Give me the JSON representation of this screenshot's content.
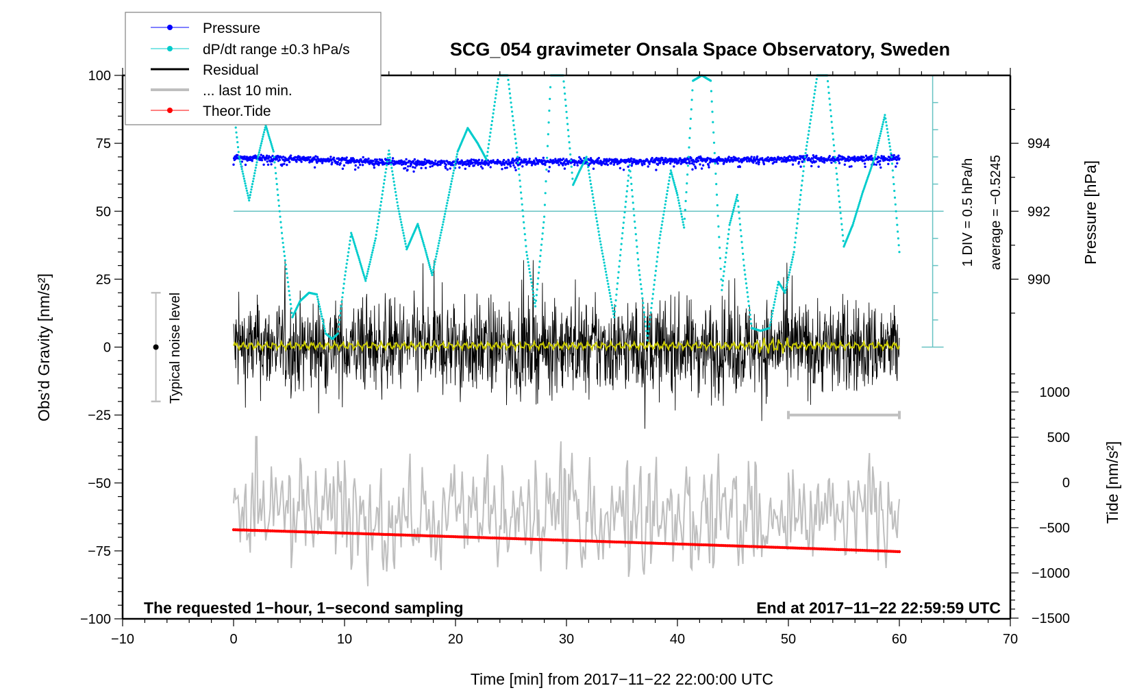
{
  "chart_data": {
    "type": "line",
    "title": "SCG_054 gravimeter Onsala Space Observatory, Sweden",
    "xlabel": "Time [min] from 2017−11−22 22:00:00 UTC",
    "ylabel_left": "Obs’d Gravity [nm/s²]",
    "ylabel_right_pressure": "Pressure [hPa]",
    "ylabel_right_tide": "Tide [nm/s²]",
    "xlim": [
      -10,
      70
    ],
    "ylim": [
      -100,
      100
    ],
    "x_ticks": [
      -10,
      0,
      10,
      20,
      30,
      40,
      50,
      60,
      70
    ],
    "x_tick_labels": [
      "−10",
      "0",
      "10",
      "20",
      "30",
      "40",
      "50",
      "60",
      "70"
    ],
    "y_ticks": [
      -100,
      -75,
      -50,
      -25,
      0,
      25,
      50,
      75,
      100
    ],
    "y_tick_labels": [
      "−100",
      "−75",
      "−50",
      "−25",
      "0",
      "25",
      "50",
      "75",
      "100"
    ],
    "pressure_axis": {
      "ticks": [
        990,
        992,
        994
      ],
      "tick_labels": [
        "990",
        "992",
        "994"
      ],
      "minor_ticks": [
        989,
        991,
        993,
        995
      ],
      "mapping_note": "992 hPa at gravity 50; 2 hPa per 25 units"
    },
    "tide_axis": {
      "ticks": [
        1000,
        500,
        0,
        -500,
        -1000,
        -1500
      ],
      "tick_labels": [
        "1000",
        "500",
        "0",
        "−500",
        "−1000",
        "−1500"
      ],
      "range": [
        -1500,
        1250
      ]
    },
    "dpdt_axis": {
      "div_label": "1 DIV = 0.5 hPa/h",
      "average_label": "average = −0.5245",
      "center_gravity_units": 50,
      "range_gravity_units": [
        0,
        100
      ],
      "div_gravity_units": 10,
      "x_position_min": 63
    },
    "legend": {
      "position": "top-left",
      "entries": [
        {
          "label": "Pressure",
          "color": "#0000ff",
          "style": "line-dot"
        },
        {
          "label": "dP/dt range ±0.3 hPa/s",
          "color": "#00cccc",
          "style": "line-dot"
        },
        {
          "label": "Residual",
          "color": "#000000",
          "style": "line-thick"
        },
        {
          "label": "... last 10 min.",
          "color": "#bebebe",
          "style": "line-thick"
        },
        {
          "label": "Theor.Tide",
          "color": "#ff0000",
          "style": "line-dot"
        }
      ]
    },
    "annotations": {
      "bottom_left": "The requested 1−hour, 1−second sampling",
      "bottom_right": "End at 2017−11−22 22:59:59 UTC",
      "noise_label": "Typical noise level",
      "noise_bar": {
        "x": -7,
        "center": 0,
        "half_range": 20
      },
      "last10_bracket": {
        "x_start": 50,
        "x_end": 60,
        "y": -25
      }
    },
    "series": [
      {
        "name": "Pressure",
        "unit": "hPa",
        "color": "#0000ff",
        "kind": "scatter-band",
        "x": [
          0,
          5,
          10,
          15,
          20,
          25,
          30,
          35,
          40,
          45,
          50,
          55,
          60
        ],
        "values": [
          993.58,
          993.55,
          993.5,
          993.44,
          993.43,
          993.45,
          993.46,
          993.47,
          993.5,
          993.52,
          993.54,
          993.55,
          993.56
        ],
        "scatter_spread_hPa": 0.25
      },
      {
        "name": "dP/dt",
        "unit": "gravity-axis units (50 = zero, 10 units = 0.5 hPa/h)",
        "color": "#00cccc",
        "kind": "dotted",
        "x": [
          0,
          0.5,
          1.4,
          2.2,
          2.9,
          3.6,
          4.4,
          5.3,
          6.0,
          6.8,
          7.5,
          8.3,
          8.9,
          9.4,
          10.0,
          10.6,
          11.2,
          11.9,
          12.8,
          14.0,
          14.8,
          15.6,
          16.6,
          17.2,
          17.9,
          19.0,
          20.2,
          21.1,
          22.0,
          22.8,
          23.4,
          23.9,
          24.7,
          25.6,
          26.4,
          27.2,
          28.0,
          28.6,
          29.2,
          29.7,
          30.6,
          31.2,
          31.8,
          33.0,
          34.3,
          35.0,
          35.7,
          36.5,
          37.3,
          38.4,
          39.4,
          40.0,
          40.6,
          41.0,
          41.4,
          42.2,
          43.0,
          43.5,
          44.0,
          44.7,
          45.4,
          46.0,
          46.7,
          47.5,
          48.3,
          49.1,
          49.7,
          50.5,
          51.5,
          52.6,
          53.5,
          54.2,
          55.0,
          55.8,
          56.7,
          57.8,
          58.7,
          59.3,
          60.0
        ],
        "values": [
          88,
          70,
          54,
          70,
          81.6,
          72,
          40,
          11,
          17,
          20,
          19.4,
          5,
          3,
          5,
          25,
          42,
          34,
          24.4,
          40,
          72.3,
          52,
          36,
          45.3,
          37,
          26.5,
          48,
          72,
          80.6,
          75,
          69,
          86,
          100,
          100,
          70,
          35,
          15,
          48,
          100,
          100,
          100,
          59.7,
          65,
          70,
          40,
          11,
          40,
          67,
          30,
          2.5,
          40,
          65,
          56,
          44,
          70,
          98,
          100,
          98,
          60,
          21,
          45,
          56,
          30,
          7,
          6,
          7,
          24,
          20,
          35,
          70,
          100,
          100,
          70,
          37,
          45,
          57,
          70,
          85.4,
          70,
          35
        ]
      },
      {
        "name": "Residual",
        "unit": "nm/s²",
        "color": "#000000",
        "kind": "noise",
        "x_range": [
          0,
          60
        ],
        "mean": 0,
        "typical_amplitude": 12,
        "peak_range": [
          -32,
          32
        ]
      },
      {
        "name": "Residual smoothed",
        "unit": "nm/s²",
        "color": "#cccc00",
        "kind": "line",
        "x_range": [
          0,
          60
        ],
        "mean": 0.5,
        "amplitude": 1.5
      },
      {
        "name": "... last 10 min.",
        "unit": "gravity-axis units (expanded)",
        "color": "#bebebe",
        "kind": "line",
        "x_range": [
          0,
          60
        ],
        "center": -62,
        "amplitude_range": [
          -88,
          -33
        ]
      },
      {
        "name": "Theor.Tide",
        "unit": "nm/s²",
        "color": "#ff0000",
        "kind": "line",
        "x": [
          0,
          10,
          20,
          30,
          40,
          50,
          60
        ],
        "values": [
          -523,
          -560,
          -600,
          -640,
          -680,
          -722,
          -765
        ]
      }
    ]
  }
}
